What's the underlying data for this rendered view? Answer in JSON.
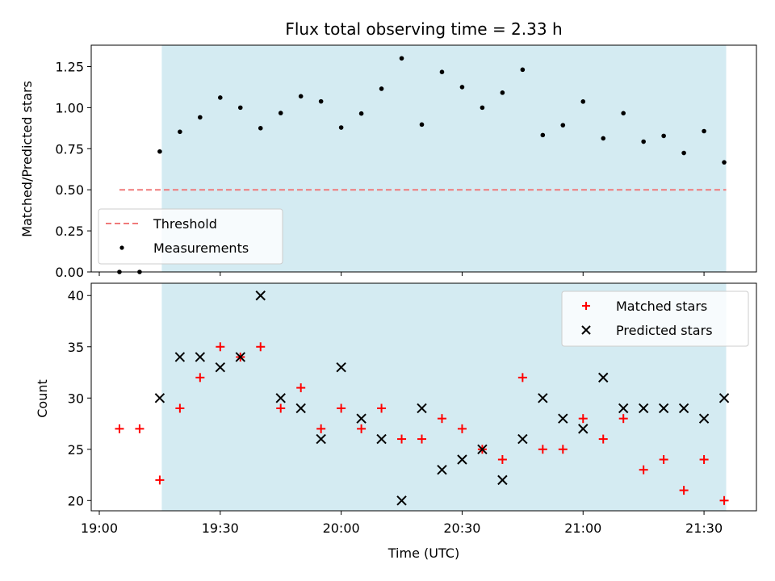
{
  "colors": {
    "band": "#d4ebf2",
    "threshold": "#f07a7a",
    "matched": "#ff0000",
    "predicted": "#000000",
    "measure": "#000000"
  },
  "chart_data": [
    {
      "type": "scatter",
      "title": "Flux total observing time = 2.33 h",
      "xlabel": "",
      "ylabel": "Matched/Predicted stars",
      "xlim": [
        -2,
        163
      ],
      "ylim": [
        0,
        1.38
      ],
      "yticks": [
        0,
        0.25,
        0.5,
        0.75,
        1.0,
        1.25
      ],
      "ytick_labels": [
        "0.00",
        "0.25",
        "0.50",
        "0.75",
        "1.00",
        "1.25"
      ],
      "xticks": [
        0,
        30,
        60,
        90,
        120,
        150
      ],
      "xtick_labels": [
        "19:00",
        "19:30",
        "20:00",
        "20:30",
        "21:00",
        "21:30"
      ],
      "band": [
        15.5,
        155.5
      ],
      "legend_location": "lower-left",
      "threshold": {
        "name": "Threshold",
        "x": [
          5,
          155.5
        ],
        "y": 0.5
      },
      "series": [
        {
          "name": "Measurements",
          "x": [
            5,
            10,
            15,
            20,
            25,
            30,
            35,
            40,
            45,
            50,
            55,
            60,
            65,
            70,
            75,
            80,
            85,
            90,
            95,
            100,
            105,
            110,
            115,
            120,
            125,
            130,
            135,
            140,
            145,
            150,
            155
          ],
          "values": [
            0.0,
            0.0,
            0.733,
            0.853,
            0.941,
            1.061,
            1.0,
            0.875,
            0.967,
            1.069,
            1.038,
            0.879,
            0.964,
            1.115,
            1.3,
            0.897,
            1.217,
            1.125,
            1.0,
            1.091,
            1.231,
            0.833,
            0.893,
            1.037,
            0.813,
            0.966,
            0.793,
            0.828,
            0.724,
            0.857,
            0.667
          ]
        }
      ]
    },
    {
      "type": "scatter",
      "title": "",
      "xlabel": "Time (UTC)",
      "ylabel": "Count",
      "xlim": [
        -2,
        163
      ],
      "ylim": [
        19,
        41.2
      ],
      "yticks": [
        20,
        25,
        30,
        35,
        40
      ],
      "ytick_labels": [
        "20",
        "25",
        "30",
        "35",
        "40"
      ],
      "xticks": [
        0,
        30,
        60,
        90,
        120,
        150
      ],
      "xtick_labels": [
        "19:00",
        "19:30",
        "20:00",
        "20:30",
        "21:00",
        "21:30"
      ],
      "band": [
        15.5,
        155.5
      ],
      "legend_location": "upper-right",
      "series": [
        {
          "name": "Matched stars",
          "marker": "plus",
          "x": [
            5,
            10,
            15,
            20,
            25,
            30,
            35,
            40,
            45,
            50,
            55,
            60,
            65,
            70,
            75,
            80,
            85,
            90,
            95,
            100,
            105,
            110,
            115,
            120,
            125,
            130,
            135,
            140,
            145,
            150,
            155
          ],
          "values": [
            27,
            27,
            22,
            29,
            32,
            35,
            34,
            35,
            29,
            31,
            27,
            29,
            27,
            29,
            26,
            26,
            28,
            27,
            25,
            24,
            32,
            25,
            25,
            28,
            26,
            28,
            23,
            24,
            21,
            24,
            20
          ]
        },
        {
          "name": "Predicted stars",
          "marker": "x",
          "x": [
            15,
            20,
            25,
            30,
            35,
            40,
            45,
            50,
            55,
            60,
            65,
            70,
            75,
            80,
            85,
            90,
            95,
            100,
            105,
            110,
            115,
            120,
            125,
            130,
            135,
            140,
            145,
            150,
            155
          ],
          "values": [
            30,
            34,
            34,
            33,
            34,
            40,
            30,
            29,
            26,
            33,
            28,
            26,
            20,
            29,
            23,
            24,
            25,
            22,
            26,
            30,
            28,
            27,
            32,
            29,
            29,
            29,
            29,
            28,
            30
          ]
        }
      ]
    }
  ]
}
